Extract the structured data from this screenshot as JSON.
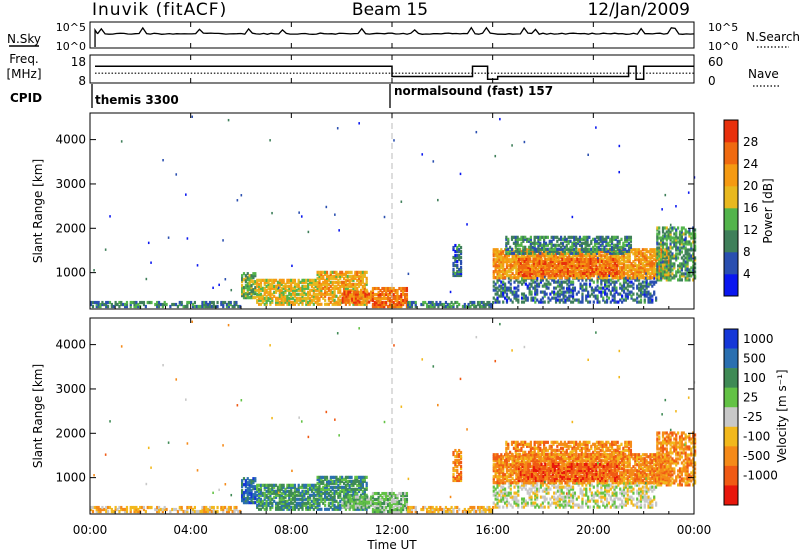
{
  "chart_data": {
    "type": "heatmap",
    "header": {
      "station": "Inuvik (fitACF)",
      "beam": "Beam 15",
      "date": "12/Jan/2009"
    },
    "x_axis": {
      "label": "Time UT",
      "range_hours": [
        0,
        24
      ],
      "ticks": [
        "00:00",
        "04:00",
        "08:00",
        "12:00",
        "16:00",
        "20:00",
        "00:00"
      ],
      "tick_hours": [
        0,
        4,
        8,
        12,
        16,
        20,
        24
      ]
    },
    "nsky_panel": {
      "left_label": "N.Sky",
      "left_ticks": [
        "10^5",
        "10^0"
      ],
      "right_ticks": [
        "10^5",
        "10^0"
      ],
      "right_label": "N.Search",
      "baseline_level": 0.55
    },
    "freq_panel": {
      "left_label_line1": "Freq.",
      "left_label_line2": "[MHz]",
      "left_ticks": [
        "18",
        "8"
      ],
      "right_ticks": [
        "60",
        "0"
      ],
      "right_label": "Nave",
      "freq_level_mhz": 11.5,
      "nave_segments": [
        {
          "start": 0.2,
          "end": 12.0,
          "value": 36
        },
        {
          "start": 12.0,
          "end": 15.2,
          "value": 14
        },
        {
          "start": 15.2,
          "end": 15.8,
          "value": 36
        },
        {
          "start": 15.8,
          "end": 16.2,
          "value": 8
        },
        {
          "start": 16.2,
          "end": 21.4,
          "value": 14
        },
        {
          "start": 21.4,
          "end": 21.7,
          "value": 36
        },
        {
          "start": 21.7,
          "end": 22.0,
          "value": 8
        },
        {
          "start": 22.0,
          "end": 24.0,
          "value": 36
        }
      ]
    },
    "cpid": {
      "label": "CPID",
      "segments": [
        {
          "start_hour": 0.2,
          "text": "themis 3300"
        },
        {
          "start_hour": 12.0,
          "text": "normalsound (fast) 157"
        }
      ]
    },
    "range_axis": {
      "label": "Slant Range [km]",
      "range_km": [
        180,
        4600
      ],
      "ticks": [
        "1000",
        "2000",
        "3000",
        "4000"
      ],
      "tick_values": [
        1000,
        2000,
        3000,
        4000
      ]
    },
    "power_panel": {
      "colorbar_label": "Power [dB]",
      "colorbar_ticks": [
        "4",
        "8",
        "12",
        "16",
        "20",
        "24",
        "28"
      ],
      "colorbar_values": [
        4,
        8,
        12,
        16,
        20,
        24,
        28
      ],
      "value_range": [
        0,
        32
      ],
      "colors": [
        "#0a17f0",
        "#2a4fb0",
        "#3f7f5a",
        "#53b44b",
        "#e8b81f",
        "#f59a12",
        "#f06a10",
        "#e8300c"
      ]
    },
    "velocity_panel": {
      "colorbar_label": "Velocity [m s⁻¹]",
      "colorbar_ticks": [
        "1000",
        "500",
        "100",
        "25",
        "-25",
        "-100",
        "-500",
        "-1000"
      ],
      "colors": [
        "#1537d8",
        "#2a6fb0",
        "#3f8a55",
        "#63c245",
        "#c8c8c8",
        "#f2b81c",
        "#f58a18",
        "#f05a14",
        "#e8170c"
      ]
    },
    "echo_regions": [
      {
        "t0": 0.0,
        "t1": 6.0,
        "r0": 200,
        "r1": 330,
        "p": 10,
        "v": -1,
        "d": 0.6
      },
      {
        "t0": 6.0,
        "t1": 6.6,
        "r0": 400,
        "r1": 950,
        "p": 14,
        "v": 3,
        "d": 0.7
      },
      {
        "t0": 6.6,
        "t1": 9.0,
        "r0": 250,
        "r1": 800,
        "p": 18,
        "v": 2,
        "d": 0.75
      },
      {
        "t0": 9.0,
        "t1": 11.0,
        "r0": 250,
        "r1": 1000,
        "p": 20,
        "v": 2,
        "d": 0.7
      },
      {
        "t0": 10.0,
        "t1": 11.2,
        "r0": 300,
        "r1": 550,
        "p": 26,
        "v": 1,
        "d": 0.8
      },
      {
        "t0": 11.2,
        "t1": 12.6,
        "r0": 200,
        "r1": 650,
        "p": 25,
        "v": 1,
        "d": 0.8
      },
      {
        "t0": 12.6,
        "t1": 16.0,
        "r0": 200,
        "r1": 330,
        "p": 10,
        "v": -1,
        "d": 0.6
      },
      {
        "t0": 14.4,
        "t1": 14.7,
        "r0": 900,
        "r1": 1600,
        "p": 8,
        "v": -2,
        "d": 0.6
      },
      {
        "t0": 16.0,
        "t1": 22.5,
        "r0": 300,
        "r1": 850,
        "p": 8,
        "v": 0,
        "d": 0.45
      },
      {
        "t0": 16.0,
        "t1": 23.0,
        "r0": 850,
        "r1": 1500,
        "p": 22,
        "v": -2,
        "d": 0.8
      },
      {
        "t0": 16.5,
        "t1": 21.5,
        "r0": 1400,
        "r1": 1800,
        "p": 10,
        "v": -2,
        "d": 0.6
      },
      {
        "t0": 17.0,
        "t1": 21.0,
        "r0": 900,
        "r1": 1300,
        "p": 26,
        "v": -3,
        "d": 0.7
      },
      {
        "t0": 22.5,
        "t1": 24.0,
        "r0": 800,
        "r1": 2000,
        "p": 12,
        "v": -2,
        "d": 0.6
      }
    ]
  }
}
